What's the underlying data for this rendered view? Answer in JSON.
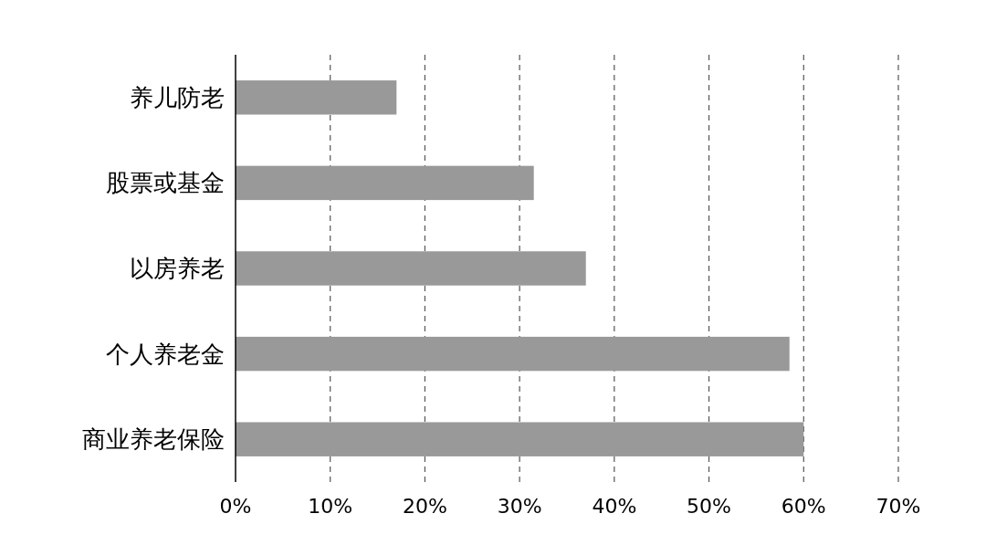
{
  "chart_data": {
    "type": "bar",
    "orientation": "horizontal",
    "categories": [
      "养儿防老",
      "股票或基金",
      "以房养老",
      "个人养老金",
      "商业养老保险"
    ],
    "values": [
      17,
      31.5,
      37,
      58.5,
      60
    ],
    "color": "#999999",
    "xlim": [
      0,
      70
    ],
    "xticks": [
      {
        "value": 0,
        "label": "0%"
      },
      {
        "value": 10,
        "label": "10%"
      },
      {
        "value": 20,
        "label": "20%"
      },
      {
        "value": 30,
        "label": "30%"
      },
      {
        "value": 40,
        "label": "40%"
      },
      {
        "value": 50,
        "label": "50%"
      },
      {
        "value": 60,
        "label": "60%"
      },
      {
        "value": 70,
        "label": "70%"
      }
    ],
    "grid": "x"
  }
}
